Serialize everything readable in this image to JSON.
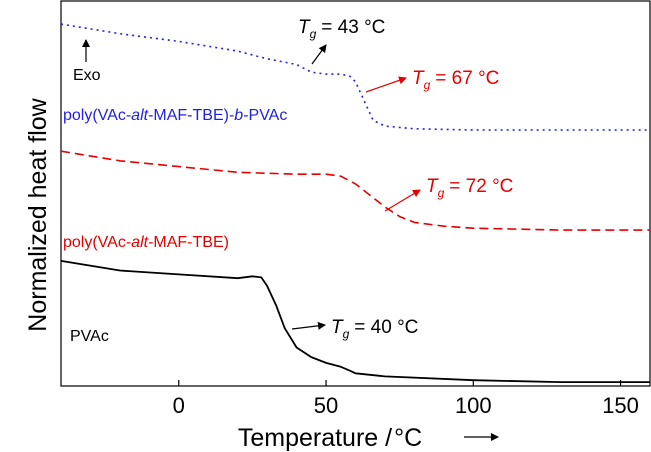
{
  "chart_data": {
    "type": "line",
    "xlabel": "Temperature /",
    "xlabel_unit": "°C",
    "ylabel": "Normalized heat flow",
    "xlim": [
      -40,
      160
    ],
    "x_ticks": [
      0,
      50,
      100,
      150
    ],
    "y_ticks_shown": false,
    "grid": false,
    "series": [
      {
        "name": "poly(VAc-alt-MAF-TBE)-b-PVAc",
        "color": "#1f1fe6",
        "style": "dotted",
        "x": [
          -40,
          -20,
          0,
          20,
          30,
          40,
          45,
          50,
          55,
          58,
          60,
          63,
          66,
          70,
          80,
          100,
          130,
          160
        ],
        "y": [
          0.94,
          0.915,
          0.895,
          0.87,
          0.85,
          0.835,
          0.815,
          0.81,
          0.81,
          0.805,
          0.79,
          0.74,
          0.69,
          0.675,
          0.668,
          0.665,
          0.665,
          0.665
        ]
      },
      {
        "name": "poly(VAc-alt-MAF-TBE)",
        "color": "#e60000",
        "style": "dashed",
        "x": [
          -40,
          -20,
          0,
          20,
          40,
          50,
          55,
          60,
          65,
          70,
          75,
          80,
          90,
          100,
          130,
          160
        ],
        "y": [
          0.61,
          0.585,
          0.57,
          0.555,
          0.55,
          0.55,
          0.545,
          0.525,
          0.495,
          0.465,
          0.44,
          0.425,
          0.415,
          0.41,
          0.405,
          0.405
        ]
      },
      {
        "name": "PVAc",
        "color": "#000000",
        "style": "solid",
        "x": [
          -40,
          -20,
          0,
          20,
          25,
          28,
          30,
          33,
          36,
          40,
          45,
          50,
          55,
          58,
          60,
          70,
          100,
          130,
          160
        ],
        "y": [
          0.325,
          0.3,
          0.29,
          0.28,
          0.285,
          0.282,
          0.26,
          0.21,
          0.15,
          0.1,
          0.075,
          0.06,
          0.05,
          0.04,
          0.033,
          0.025,
          0.015,
          0.01,
          0.01
        ]
      }
    ],
    "labels": [
      {
        "text": "poly(VAc-",
        "italic_part": "alt",
        "rest": "-MAF-TBE)-",
        "italic_b": "b",
        "end": "-PVAc",
        "color": "#1f1fe6"
      },
      {
        "text": "poly(VAc-",
        "italic_part": "alt",
        "rest": "-MAF-TBE)",
        "color": "#e60000"
      },
      {
        "text": "PVAc",
        "color": "#000000"
      },
      {
        "text": "Exo",
        "color": "#000000"
      }
    ],
    "annotations": [
      {
        "T": "T",
        "sub": "g",
        "value": "= 43 °C",
        "color": "#000000"
      },
      {
        "T": "T",
        "sub": "g",
        "value": "= 67 °C",
        "color": "#e60000"
      },
      {
        "T": "T",
        "sub": "g",
        "value": "= 72 °C",
        "color": "#e60000"
      },
      {
        "T": "T",
        "sub": "g",
        "value": "= 40 °C",
        "color": "#000000"
      }
    ]
  }
}
